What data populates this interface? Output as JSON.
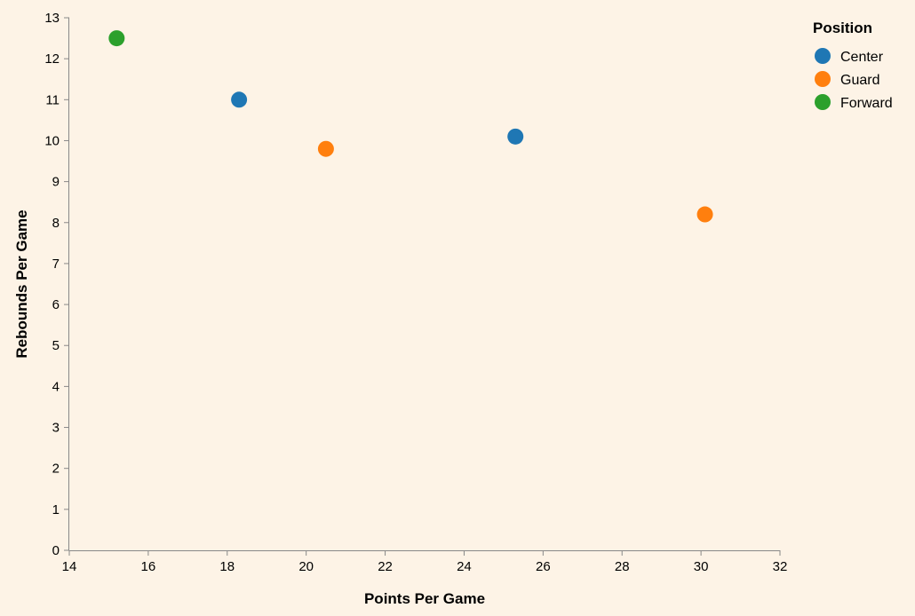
{
  "chart_data": {
    "type": "scatter",
    "xlabel": "Points Per Game",
    "ylabel": "Rebounds Per Game",
    "xlim": [
      14,
      32
    ],
    "ylim": [
      0,
      13
    ],
    "x_ticks": [
      14,
      16,
      18,
      20,
      22,
      24,
      26,
      28,
      30,
      32
    ],
    "y_ticks": [
      0,
      1,
      2,
      3,
      4,
      5,
      6,
      7,
      8,
      9,
      10,
      11,
      12,
      13
    ],
    "grid": false,
    "legend": {
      "title": "Position",
      "placement": "top-right",
      "entries": [
        {
          "name": "Center",
          "color": "#1f77b4"
        },
        {
          "name": "Guard",
          "color": "#ff7f0e"
        },
        {
          "name": "Forward",
          "color": "#2ca02c"
        }
      ]
    },
    "points": [
      {
        "x": 15.2,
        "y": 12.5,
        "position": "Forward"
      },
      {
        "x": 18.3,
        "y": 11.0,
        "position": "Center"
      },
      {
        "x": 20.5,
        "y": 9.8,
        "position": "Guard"
      },
      {
        "x": 25.3,
        "y": 10.1,
        "position": "Center"
      },
      {
        "x": 30.1,
        "y": 8.2,
        "position": "Guard"
      }
    ]
  }
}
